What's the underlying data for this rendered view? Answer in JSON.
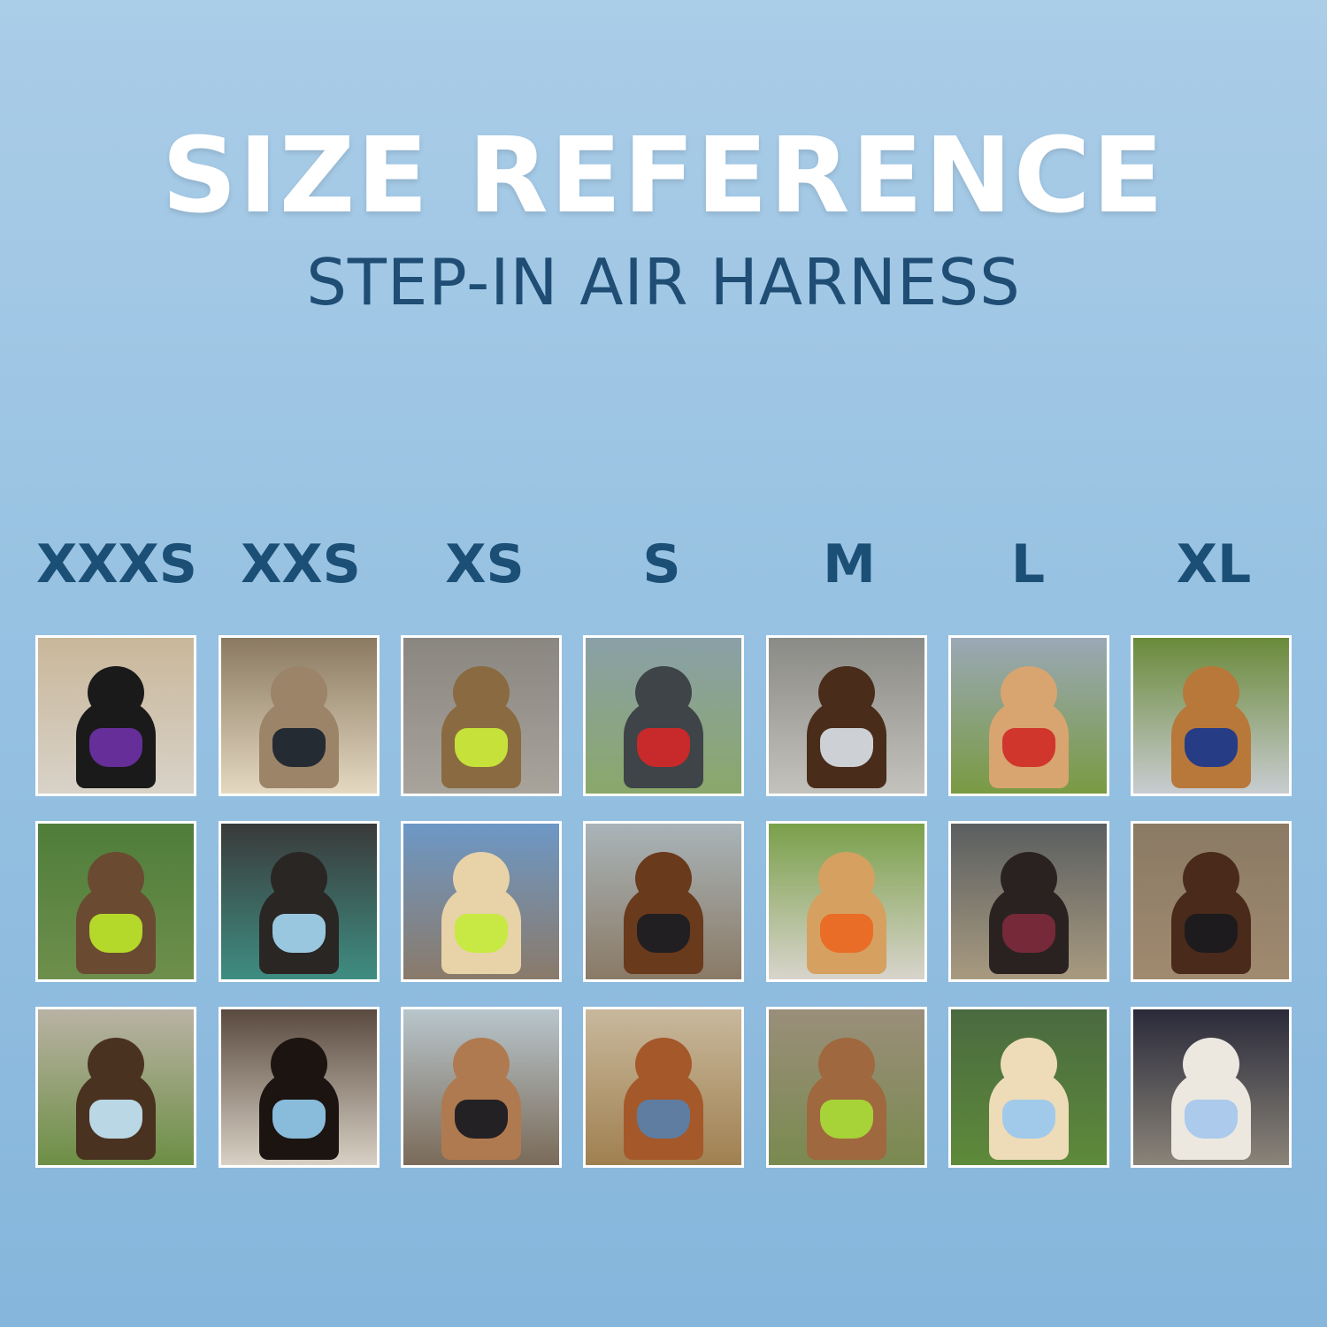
{
  "title": "SIZE REFERENCE",
  "subtitle": "STEP-IN AIR HARNESS",
  "columns": [
    {
      "size": "XXXS",
      "photos": [
        {
          "bg": [
            "#c9b79a",
            "#d8d2c8"
          ],
          "pet": "#1a1a1a",
          "harness": "#6a2fa0"
        },
        {
          "bg": [
            "#4f7d3a",
            "#6e8f4c"
          ],
          "pet": "#6b4a32",
          "harness": "#b8e02a"
        },
        {
          "bg": [
            "#b9b2a4",
            "#6d8f45"
          ],
          "pet": "#4a3220",
          "harness": "#bfe0f0"
        }
      ]
    },
    {
      "size": "XXS",
      "photos": [
        {
          "bg": [
            "#8b7a62",
            "#e4d8c0"
          ],
          "pet": "#9b8468",
          "harness": "#1e2630"
        },
        {
          "bg": [
            "#3a3a3a",
            "#3e8d82"
          ],
          "pet": "#2a2624",
          "harness": "#9fd0ea"
        },
        {
          "bg": [
            "#5a4a40",
            "#d8d0c4"
          ],
          "pet": "#1c1410",
          "harness": "#8fc4e6"
        }
      ]
    },
    {
      "size": "XS",
      "photos": [
        {
          "bg": [
            "#8a8680",
            "#a8a49c"
          ],
          "pet": "#8a6a40",
          "harness": "#c9e83a"
        },
        {
          "bg": [
            "#6d98c6",
            "#8a7a6a"
          ],
          "pet": "#e8d2a8",
          "harness": "#c6ea3e"
        },
        {
          "bg": [
            "#b8c6cc",
            "#7a6a58"
          ],
          "pet": "#b07a50",
          "harness": "#1c1c22"
        }
      ]
    },
    {
      "size": "S",
      "photos": [
        {
          "bg": [
            "#8aa0a8",
            "#8aa86a"
          ],
          "pet": "#3e4448",
          "harness": "#d0282a"
        },
        {
          "bg": [
            "#a9b4b8",
            "#8a7a66"
          ],
          "pet": "#6a3a1c",
          "harness": "#1e1e22"
        },
        {
          "bg": [
            "#c8b89c",
            "#a08050"
          ],
          "pet": "#a5582a",
          "harness": "#5a7fa8"
        }
      ]
    },
    {
      "size": "M",
      "photos": [
        {
          "bg": [
            "#8a8a86",
            "#c4c2bc"
          ],
          "pet": "#4a2c1a",
          "harness": "#d4dae0"
        },
        {
          "bg": [
            "#7aa04a",
            "#d8d4cc"
          ],
          "pet": "#d6a060",
          "harness": "#ea6a24"
        },
        {
          "bg": [
            "#9a8e7a",
            "#7a8a50"
          ],
          "pet": "#a0683e",
          "harness": "#a8d838"
        }
      ]
    },
    {
      "size": "L",
      "photos": [
        {
          "bg": [
            "#9aa8b6",
            "#7a9a42"
          ],
          "pet": "#d8a470",
          "harness": "#d03028"
        },
        {
          "bg": [
            "#5a5e60",
            "#a89a80"
          ],
          "pet": "#2a2220",
          "harness": "#7a2a3a"
        },
        {
          "bg": [
            "#4a6a40",
            "#5e8a3a"
          ],
          "pet": "#eedcb8",
          "harness": "#9cc8ec"
        }
      ]
    },
    {
      "size": "XL",
      "photos": [
        {
          "bg": [
            "#6a8a3a",
            "#c8ccd0"
          ],
          "pet": "#b8783a",
          "harness": "#1e3a8a"
        },
        {
          "bg": [
            "#8a7a64",
            "#a08a70"
          ],
          "pet": "#4a2a1a",
          "harness": "#1a1a1e"
        },
        {
          "bg": [
            "#2a2a3a",
            "#8a8478"
          ],
          "pet": "#ece8e0",
          "harness": "#a8c8ec"
        }
      ]
    }
  ]
}
